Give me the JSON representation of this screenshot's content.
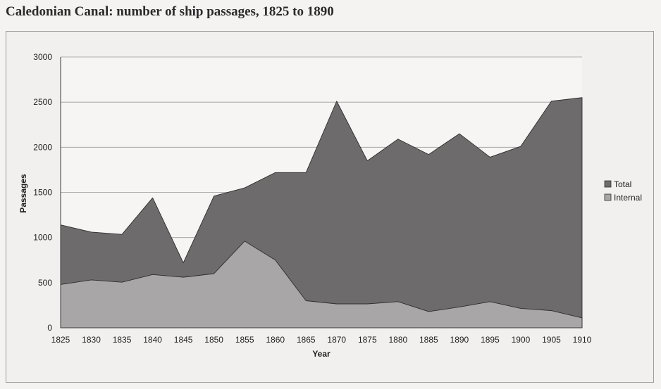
{
  "page": {
    "title": "Caledonian Canal: number of ship passages, 1825 to 1890"
  },
  "chart_data": {
    "type": "area",
    "title": "Caledonian Canal: number of ship passages, 1825 to 1890",
    "xlabel": "Year",
    "ylabel": "Passages",
    "categories": [
      "1825",
      "1830",
      "1835",
      "1840",
      "1845",
      "1850",
      "1855",
      "1860",
      "1865",
      "1870",
      "1875",
      "1880",
      "1885",
      "1890",
      "1895",
      "1900",
      "1905",
      "1910"
    ],
    "series": [
      {
        "name": "Total",
        "color": "#6d6b6c",
        "values": [
          1140,
          1060,
          1035,
          1440,
          720,
          1460,
          1550,
          1720,
          1720,
          2510,
          1850,
          2090,
          1920,
          2150,
          1890,
          2010,
          2510,
          2550
        ]
      },
      {
        "name": "Internal",
        "color": "#a8a6a6",
        "values": [
          480,
          530,
          505,
          590,
          560,
          600,
          960,
          750,
          300,
          265,
          265,
          290,
          180,
          230,
          290,
          215,
          190,
          110
        ]
      }
    ],
    "yticks": [
      0,
      500,
      1000,
      1500,
      2000,
      2500,
      3000
    ],
    "ylim": [
      0,
      3000
    ],
    "grid": true,
    "legend_position": "right"
  }
}
